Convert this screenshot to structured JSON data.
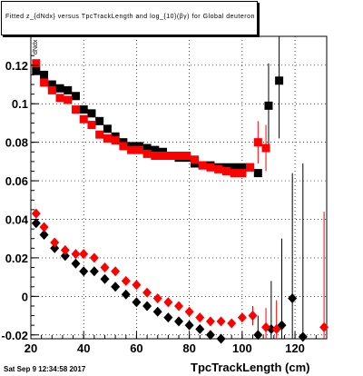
{
  "chart_data": {
    "type": "scatter",
    "title": "Fitted  z_{dNdx}  versus TpcTrackLength and log_{10}(βγ) for Global deuteron",
    "footer": "Sat Sep  9 12:34:58 2017",
    "xlabel": "TpcTrackLength (cm)",
    "ylabel": "dNdx",
    "xlim": [
      20,
      132
    ],
    "ylim": [
      -0.022,
      0.135
    ],
    "xticks": [
      20,
      40,
      60,
      80,
      100,
      120
    ],
    "yticks": [
      -0.02,
      0,
      0.02,
      0.04,
      0.06,
      0.08,
      0.1,
      0.12
    ],
    "ytick_labels": [
      "-0.02",
      "0",
      "0.02",
      "0.04",
      "0.06",
      "0.08",
      "0.1",
      "0.12"
    ],
    "grid": true,
    "series": [
      {
        "marker": "square",
        "color": "#000000",
        "points": [
          [
            22,
            0.117
          ],
          [
            25,
            0.115
          ],
          [
            28,
            0.11
          ],
          [
            31,
            0.108
          ],
          [
            34,
            0.107
          ],
          [
            37,
            0.104
          ],
          [
            40,
            0.097
          ],
          [
            43,
            0.095
          ],
          [
            46,
            0.091
          ],
          [
            49,
            0.087
          ],
          [
            52,
            0.083
          ],
          [
            55,
            0.08
          ],
          [
            58,
            0.078
          ],
          [
            61,
            0.078
          ],
          [
            64,
            0.077
          ],
          [
            67,
            0.076
          ],
          [
            70,
            0.075
          ],
          [
            73,
            0.073
          ],
          [
            76,
            0.072
          ],
          [
            79,
            0.072
          ],
          [
            82,
            0.069
          ],
          [
            85,
            0.068
          ],
          [
            88,
            0.068
          ],
          [
            91,
            0.067
          ],
          [
            94,
            0.067
          ],
          [
            97,
            0.067
          ],
          [
            100,
            0.067
          ],
          [
            103,
            0.067
          ],
          [
            106,
            0.064
          ],
          [
            110,
            0.099
          ],
          [
            114,
            0.112
          ]
        ],
        "errors": [
          [
            110,
            0.022
          ],
          [
            114,
            0.03
          ]
        ]
      },
      {
        "marker": "square",
        "color": "#ff0000",
        "points": [
          [
            22,
            0.121
          ],
          [
            25,
            0.111
          ],
          [
            28,
            0.107
          ],
          [
            31,
            0.103
          ],
          [
            34,
            0.102
          ],
          [
            37,
            0.097
          ],
          [
            40,
            0.092
          ],
          [
            43,
            0.089
          ],
          [
            46,
            0.084
          ],
          [
            49,
            0.082
          ],
          [
            52,
            0.081
          ],
          [
            55,
            0.078
          ],
          [
            58,
            0.076
          ],
          [
            61,
            0.076
          ],
          [
            64,
            0.074
          ],
          [
            67,
            0.073
          ],
          [
            70,
            0.073
          ],
          [
            73,
            0.073
          ],
          [
            76,
            0.073
          ],
          [
            79,
            0.073
          ],
          [
            82,
            0.071
          ],
          [
            85,
            0.068
          ],
          [
            88,
            0.067
          ],
          [
            91,
            0.066
          ],
          [
            94,
            0.065
          ],
          [
            97,
            0.064
          ],
          [
            100,
            0.064
          ],
          [
            103,
            0.067
          ],
          [
            106,
            0.08
          ],
          [
            109,
            0.077
          ]
        ],
        "errors": [
          [
            106,
            0.011
          ],
          [
            109,
            0.012
          ]
        ]
      },
      {
        "marker": "diamond",
        "color": "#000000",
        "points": [
          [
            22,
            0.038
          ],
          [
            25,
            0.032
          ],
          [
            29,
            0.025
          ],
          [
            33,
            0.021
          ],
          [
            37,
            0.017
          ],
          [
            40,
            0.013
          ],
          [
            44,
            0.013
          ],
          [
            48,
            0.009
          ],
          [
            52,
            0.005
          ],
          [
            56,
            0.001
          ],
          [
            60,
            -0.003
          ],
          [
            64,
            -0.005
          ],
          [
            68,
            -0.008
          ],
          [
            72,
            -0.011
          ],
          [
            76,
            -0.013
          ],
          [
            80,
            -0.015
          ],
          [
            84,
            -0.017
          ],
          [
            88,
            -0.02
          ],
          [
            92,
            -0.022
          ],
          [
            106,
            -0.02
          ],
          [
            111,
            -0.017
          ],
          [
            115,
            -0.015
          ],
          [
            119,
            -0.001
          ],
          [
            123,
            -0.021
          ]
        ],
        "errors": [
          [
            106,
            0.01
          ],
          [
            111,
            0.025
          ],
          [
            115,
            0.045
          ],
          [
            119,
            0.065
          ],
          [
            123,
            0.09
          ]
        ]
      },
      {
        "marker": "diamond",
        "color": "#ff0000",
        "points": [
          [
            22,
            0.043
          ],
          [
            25,
            0.036
          ],
          [
            29,
            0.028
          ],
          [
            33,
            0.024
          ],
          [
            37,
            0.022
          ],
          [
            40,
            0.022
          ],
          [
            44,
            0.02
          ],
          [
            48,
            0.015
          ],
          [
            52,
            0.013
          ],
          [
            56,
            0.008
          ],
          [
            60,
            0.006
          ],
          [
            64,
            0.002
          ],
          [
            68,
            -0.001
          ],
          [
            72,
            -0.003
          ],
          [
            76,
            -0.005
          ],
          [
            80,
            -0.008
          ],
          [
            84,
            -0.011
          ],
          [
            88,
            -0.013
          ],
          [
            92,
            -0.013
          ],
          [
            96,
            -0.014
          ],
          [
            100,
            -0.011
          ],
          [
            104,
            -0.01
          ],
          [
            109,
            -0.016
          ],
          [
            113,
            -0.017
          ],
          [
            131,
            -0.016
          ]
        ],
        "errors": [
          [
            104,
            0.005
          ],
          [
            109,
            0.01
          ],
          [
            113,
            0.015
          ],
          [
            131,
            0.06
          ]
        ]
      }
    ]
  }
}
